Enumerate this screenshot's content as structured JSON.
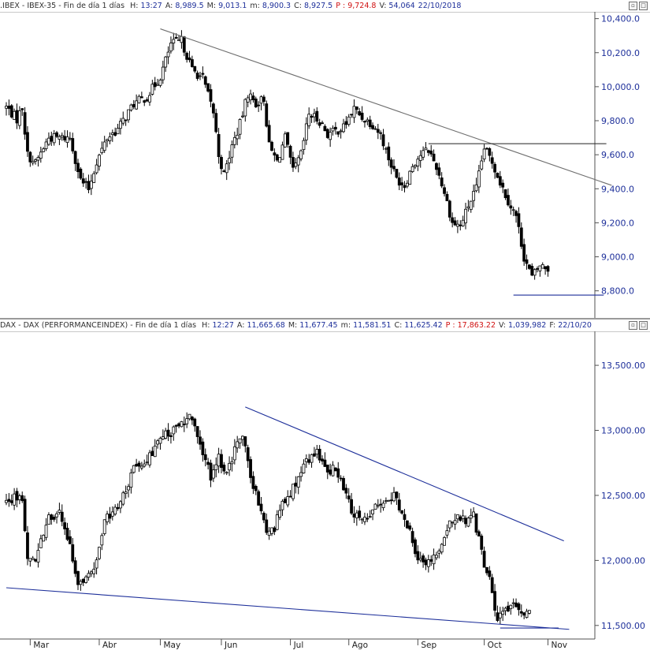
{
  "chart_data": [
    {
      "type": "candlestick",
      "header": {
        "symbol": ".IBEX - IBEX-35 - Fin de día 1 días",
        "fields": [
          {
            "label": "H:",
            "value": "13:27"
          },
          {
            "label": "A:",
            "value": "8,989.5"
          },
          {
            "label": "M:",
            "value": "9,013.1"
          },
          {
            "label": "m:",
            "value": "8,900.3"
          },
          {
            "label": "C:",
            "value": "8,927.5"
          },
          {
            "label": "P :",
            "value": "9,724.8",
            "color": "#d01010"
          },
          {
            "label": "V:",
            "value": "54,064"
          },
          {
            "label": "",
            "value": "22/10/2018"
          }
        ]
      },
      "y_ticks": [
        {
          "v": 10400,
          "label": "10,400.0"
        },
        {
          "v": 10200,
          "label": "10,200.0"
        },
        {
          "v": 10000,
          "label": "10,000.0"
        },
        {
          "v": 9800,
          "label": "9,800.0"
        },
        {
          "v": 9600,
          "label": "9,600.0"
        },
        {
          "v": 9400,
          "label": "9,400.0"
        },
        {
          "v": 9200,
          "label": "9,200.0"
        },
        {
          "v": 9000,
          "label": "9,000.0"
        },
        {
          "v": 8800,
          "label": "8,800.0"
        }
      ],
      "ylim": [
        8650,
        10440
      ],
      "line_color": "#6e6e6e",
      "trendlines": [
        {
          "x1": 58,
          "y1": 10340,
          "x2": 228,
          "y2": 9420,
          "color": "#6e6e6e"
        },
        {
          "x1": 159,
          "y1": 9665,
          "x2": 226,
          "y2": 9665,
          "color": "#222222"
        },
        {
          "x1": 191,
          "y1": 8775,
          "x2": 225,
          "y2": 8775,
          "color": "#1d2f9a"
        }
      ],
      "anchors": [
        [
          0,
          9880
        ],
        [
          4,
          9810
        ],
        [
          6,
          9880
        ],
        [
          8,
          9600
        ],
        [
          11,
          9550
        ],
        [
          16,
          9700
        ],
        [
          20,
          9700
        ],
        [
          24,
          9700
        ],
        [
          28,
          9450
        ],
        [
          31,
          9400
        ],
        [
          34,
          9560
        ],
        [
          38,
          9700
        ],
        [
          42,
          9750
        ],
        [
          48,
          9900
        ],
        [
          53,
          9940
        ],
        [
          58,
          10060
        ],
        [
          62,
          10250
        ],
        [
          66,
          10270
        ],
        [
          70,
          10100
        ],
        [
          74,
          10050
        ],
        [
          78,
          9850
        ],
        [
          80,
          9600
        ],
        [
          82,
          9480
        ],
        [
          85,
          9650
        ],
        [
          88,
          9780
        ],
        [
          91,
          9960
        ],
        [
          94,
          9900
        ],
        [
          97,
          9930
        ],
        [
          99,
          9650
        ],
        [
          102,
          9560
        ],
        [
          105,
          9700
        ],
        [
          108,
          9500
        ],
        [
          111,
          9600
        ],
        [
          114,
          9840
        ],
        [
          118,
          9800
        ],
        [
          121,
          9720
        ],
        [
          124,
          9740
        ],
        [
          127,
          9760
        ],
        [
          131,
          9870
        ],
        [
          134,
          9820
        ],
        [
          138,
          9780
        ],
        [
          141,
          9720
        ],
        [
          144,
          9580
        ],
        [
          147,
          9460
        ],
        [
          150,
          9420
        ],
        [
          153,
          9540
        ],
        [
          156,
          9600
        ],
        [
          159,
          9630
        ],
        [
          162,
          9530
        ],
        [
          165,
          9380
        ],
        [
          168,
          9200
        ],
        [
          171,
          9180
        ],
        [
          174,
          9300
        ],
        [
          177,
          9400
        ],
        [
          180,
          9640
        ],
        [
          183,
          9560
        ],
        [
          186,
          9440
        ],
        [
          189,
          9330
        ],
        [
          192,
          9240
        ],
        [
          195,
          9000
        ],
        [
          198,
          8880
        ],
        [
          201,
          8950
        ],
        [
          204,
          8930
        ]
      ],
      "n_days": 205,
      "x_tick_labels": [],
      "x_ticks_idx": [
        9,
        35,
        58,
        81,
        107,
        129,
        155,
        180,
        204
      ]
    },
    {
      "type": "candlestick",
      "header": {
        "symbol": "DAX - DAX (PERFORMANCEINDEX) - Fin de día 1 días",
        "fields": [
          {
            "label": "H:",
            "value": "12:27"
          },
          {
            "label": "A:",
            "value": "11,665.68"
          },
          {
            "label": "M:",
            "value": "11,677.45"
          },
          {
            "label": "m:",
            "value": "11,581.51"
          },
          {
            "label": "C:",
            "value": "11,625.42"
          },
          {
            "label": "P :",
            "value": "17,863.22",
            "color": "#d01010"
          },
          {
            "label": "V:",
            "value": "1,039,982"
          },
          {
            "label": "F:",
            "value": "22/10/20"
          }
        ]
      },
      "y_ticks": [
        {
          "v": 13500,
          "label": "13,500.00"
        },
        {
          "v": 13000,
          "label": "13,000.00"
        },
        {
          "v": 12500,
          "label": "12,500.00"
        },
        {
          "v": 12000,
          "label": "12,000.00"
        },
        {
          "v": 11500,
          "label": "11,500.00"
        }
      ],
      "ylim": [
        11420,
        13640
      ],
      "line_color": "#1d2f9a",
      "trendlines": [
        {
          "x1": 90,
          "y1": 13180,
          "x2": 210,
          "y2": 12150,
          "color": "#1d2f9a"
        },
        {
          "x1": 0,
          "y1": 11790,
          "x2": 212,
          "y2": 11470,
          "color": "#1d2f9a"
        },
        {
          "x1": 186,
          "y1": 11480,
          "x2": 208,
          "y2": 11480,
          "color": "#1d2f9a"
        }
      ],
      "anchors": [
        [
          0,
          12450
        ],
        [
          4,
          12500
        ],
        [
          6,
          12450
        ],
        [
          8,
          12050
        ],
        [
          11,
          12000
        ],
        [
          16,
          12350
        ],
        [
          20,
          12350
        ],
        [
          24,
          12100
        ],
        [
          27,
          11800
        ],
        [
          30,
          11900
        ],
        [
          33,
          11900
        ],
        [
          37,
          12300
        ],
        [
          42,
          12400
        ],
        [
          48,
          12700
        ],
        [
          54,
          12800
        ],
        [
          59,
          12950
        ],
        [
          64,
          13000
        ],
        [
          69,
          13100
        ],
        [
          73,
          12900
        ],
        [
          77,
          12650
        ],
        [
          80,
          12800
        ],
        [
          83,
          12650
        ],
        [
          86,
          12850
        ],
        [
          89,
          12950
        ],
        [
          92,
          12650
        ],
        [
          95,
          12450
        ],
        [
          98,
          12250
        ],
        [
          101,
          12250
        ],
        [
          104,
          12450
        ],
        [
          108,
          12550
        ],
        [
          113,
          12750
        ],
        [
          117,
          12850
        ],
        [
          120,
          12700
        ],
        [
          124,
          12700
        ],
        [
          128,
          12500
        ],
        [
          131,
          12350
        ],
        [
          134,
          12300
        ],
        [
          137,
          12350
        ],
        [
          141,
          12450
        ],
        [
          146,
          12500
        ],
        [
          149,
          12350
        ],
        [
          152,
          12250
        ],
        [
          155,
          12000
        ],
        [
          158,
          11950
        ],
        [
          161,
          12050
        ],
        [
          164,
          12100
        ],
        [
          167,
          12300
        ],
        [
          170,
          12350
        ],
        [
          173,
          12300
        ],
        [
          176,
          12350
        ],
        [
          179,
          12050
        ],
        [
          182,
          11850
        ],
        [
          185,
          11550
        ],
        [
          188,
          11620
        ],
        [
          191,
          11700
        ],
        [
          194,
          11600
        ],
        [
          197,
          11620
        ]
      ],
      "n_days": 205,
      "x_tick_labels": [
        "Mar",
        "Abr",
        "May",
        "Jun",
        "Jul",
        "Ago",
        "Sep",
        "Oct",
        "Nov"
      ],
      "x_ticks_idx": [
        9,
        35,
        58,
        81,
        107,
        129,
        155,
        180,
        204
      ]
    }
  ]
}
